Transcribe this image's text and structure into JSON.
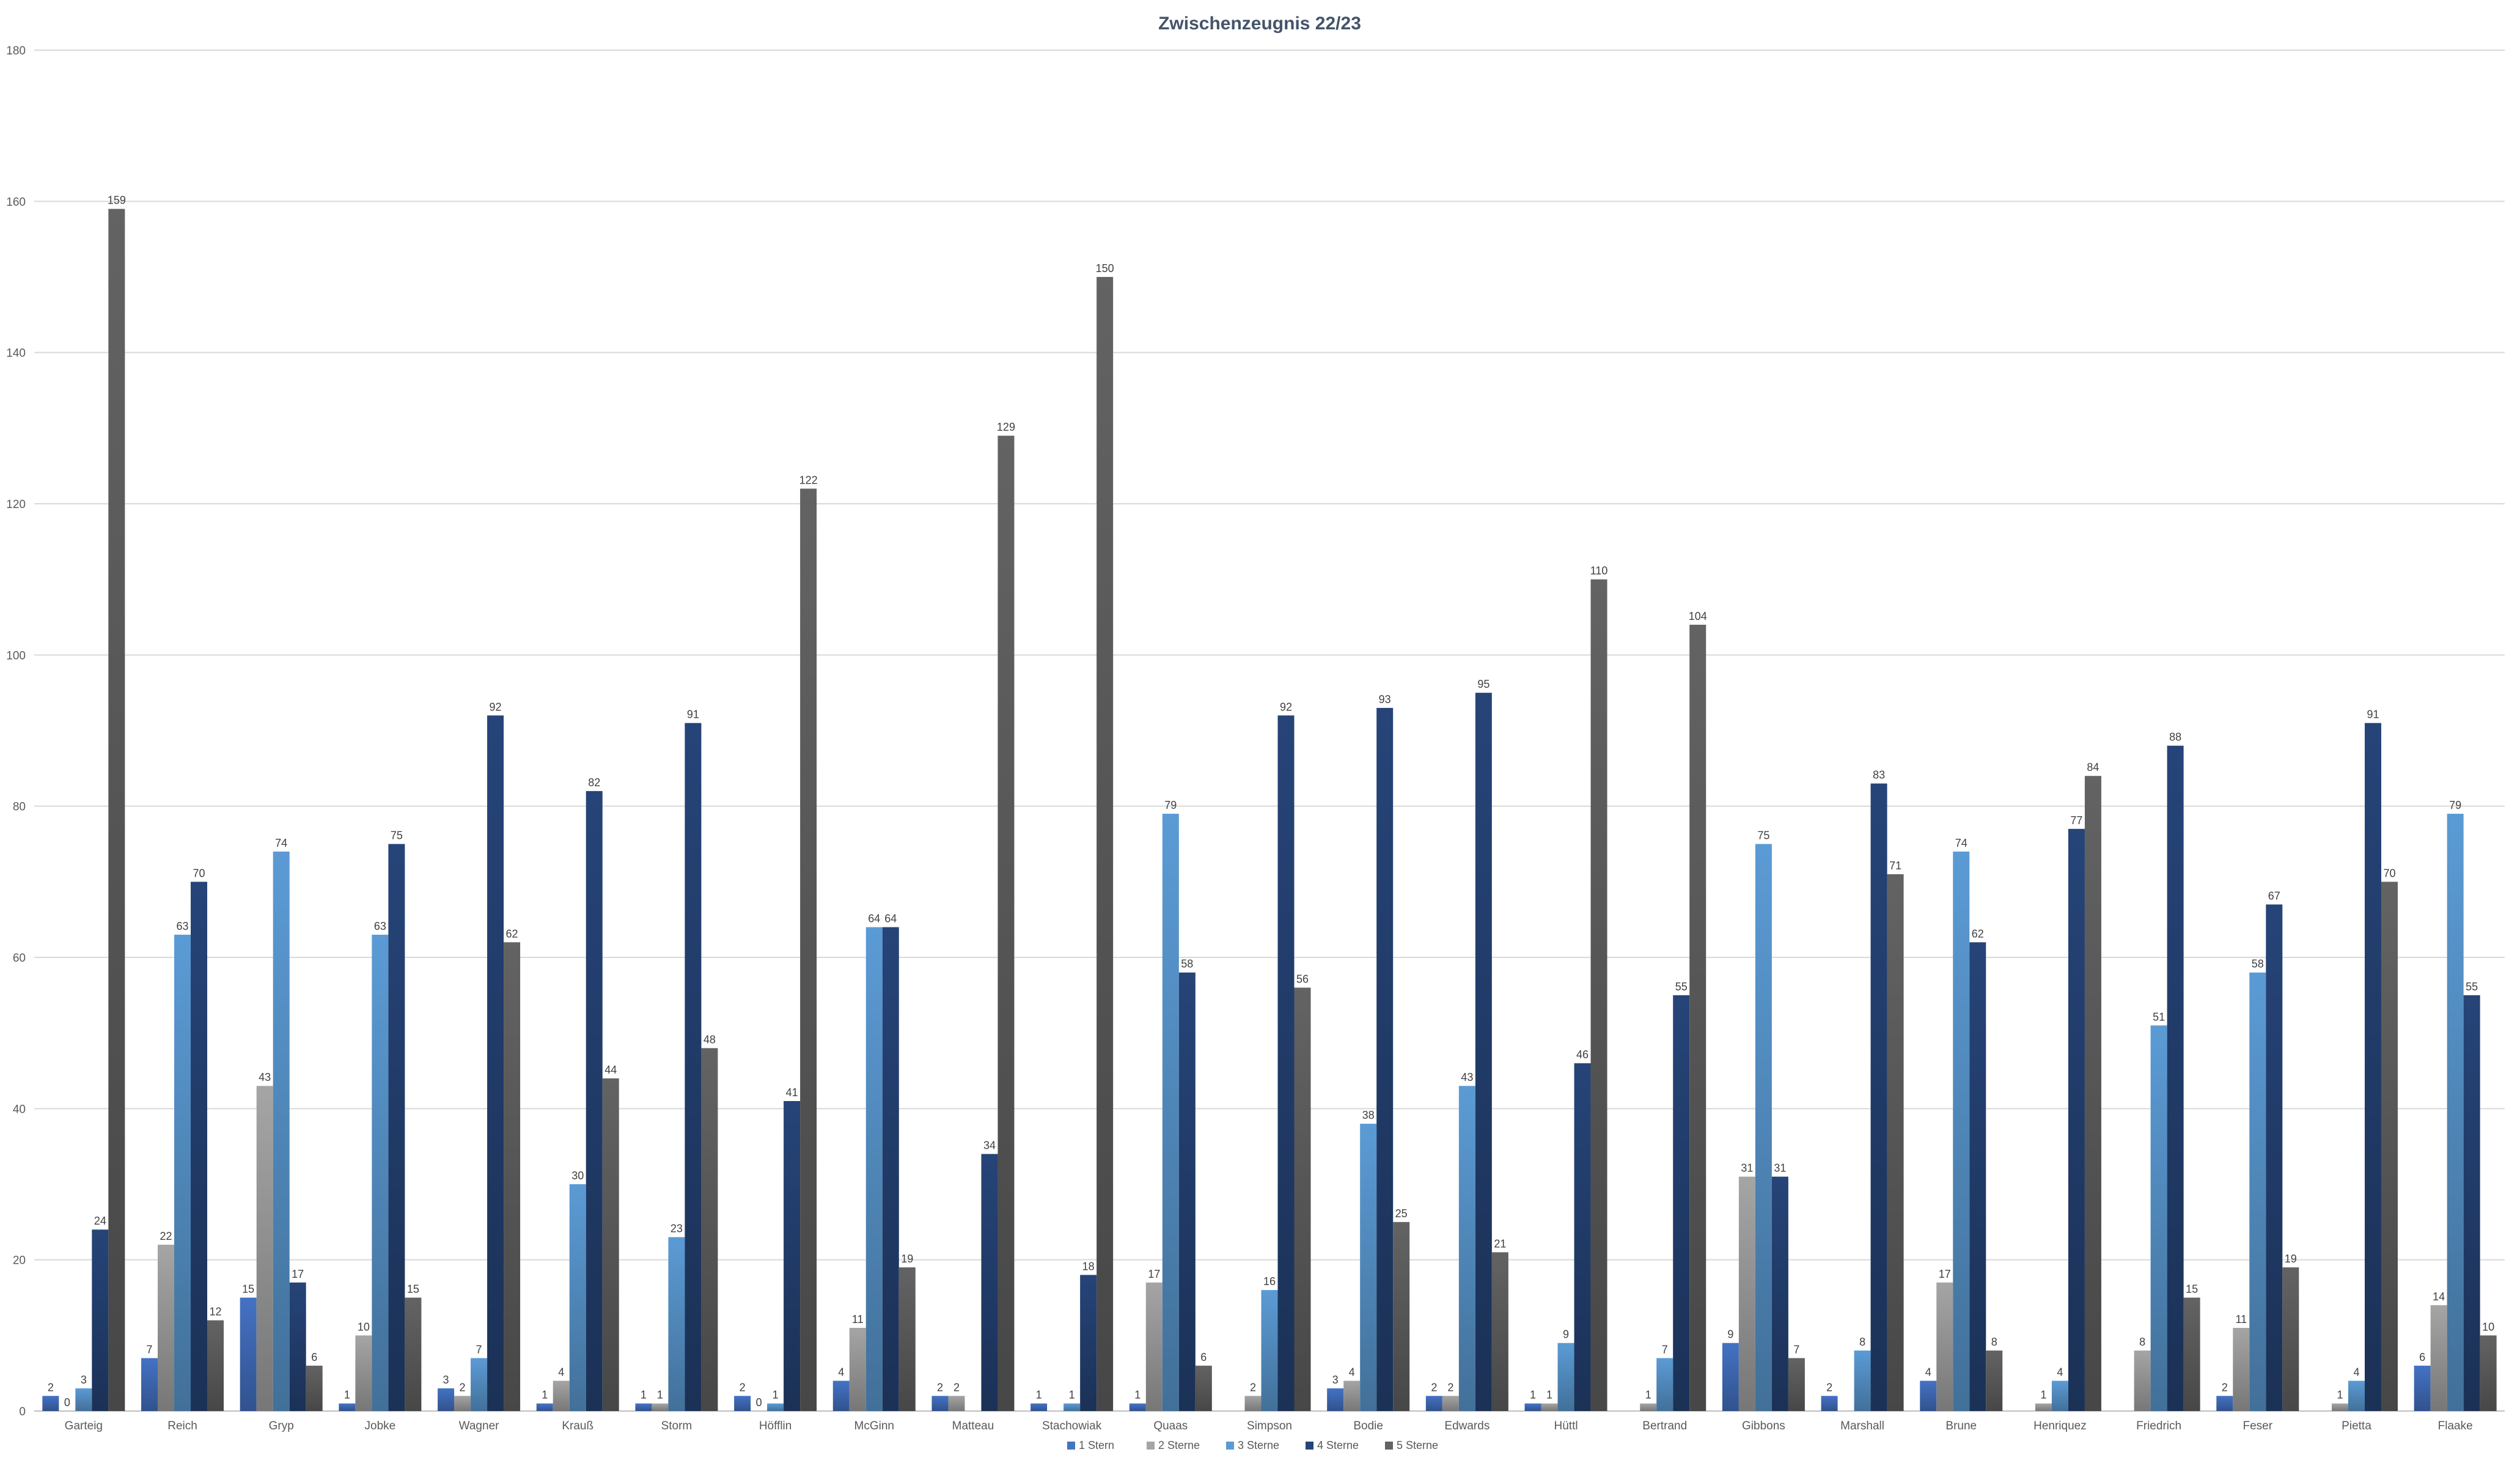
{
  "chart_data": {
    "type": "bar",
    "title": "Zwischenzeugnis 22/23",
    "xlabel": "",
    "ylabel": "",
    "ylim": [
      0,
      180
    ],
    "yticks": [
      0,
      20,
      40,
      60,
      80,
      100,
      120,
      140,
      160,
      180
    ],
    "grid": true,
    "legend_position": "bottom",
    "categories": [
      "Garteig",
      "Reich",
      "Gryp",
      "Jobke",
      "Wagner",
      "Krauß",
      "Storm",
      "Höfflin",
      "McGinn",
      "Matteau",
      "Stachowiak",
      "Quaas",
      "Simpson",
      "Bodie",
      "Edwards",
      "Hüttl",
      "Bertrand",
      "Gibbons",
      "Marshall",
      "Brune",
      "Henriquez",
      "Friedrich",
      "Feser",
      "Pietta",
      "Flaake"
    ],
    "series": [
      {
        "name": "1 Stern",
        "color": "#4472c4",
        "values": [
          2,
          7,
          15,
          1,
          3,
          1,
          1,
          2,
          4,
          2,
          1,
          1,
          null,
          3,
          2,
          1,
          null,
          9,
          2,
          4,
          null,
          null,
          2,
          null,
          6
        ]
      },
      {
        "name": "2 Sterne",
        "color": "#a5a5a5",
        "values": [
          0,
          22,
          43,
          10,
          2,
          4,
          1,
          0,
          11,
          2,
          null,
          17,
          2,
          4,
          2,
          1,
          1,
          31,
          null,
          17,
          1,
          8,
          11,
          1,
          14
        ]
      },
      {
        "name": "3 Sterne",
        "color": "#5b9bd5",
        "values": [
          3,
          63,
          74,
          63,
          7,
          30,
          23,
          1,
          64,
          null,
          1,
          79,
          16,
          38,
          43,
          9,
          7,
          75,
          8,
          74,
          4,
          51,
          58,
          4,
          79
        ]
      },
      {
        "name": "4 Sterne",
        "color": "#264478",
        "values": [
          24,
          70,
          17,
          75,
          92,
          82,
          91,
          41,
          64,
          34,
          18,
          58,
          92,
          93,
          95,
          46,
          55,
          31,
          83,
          62,
          77,
          88,
          67,
          91,
          55
        ]
      },
      {
        "name": "5 Sterne",
        "color": "#636363",
        "values": [
          159,
          12,
          6,
          15,
          62,
          44,
          48,
          122,
          19,
          129,
          150,
          6,
          56,
          25,
          21,
          110,
          104,
          7,
          71,
          8,
          84,
          15,
          19,
          70,
          10
        ]
      }
    ]
  }
}
